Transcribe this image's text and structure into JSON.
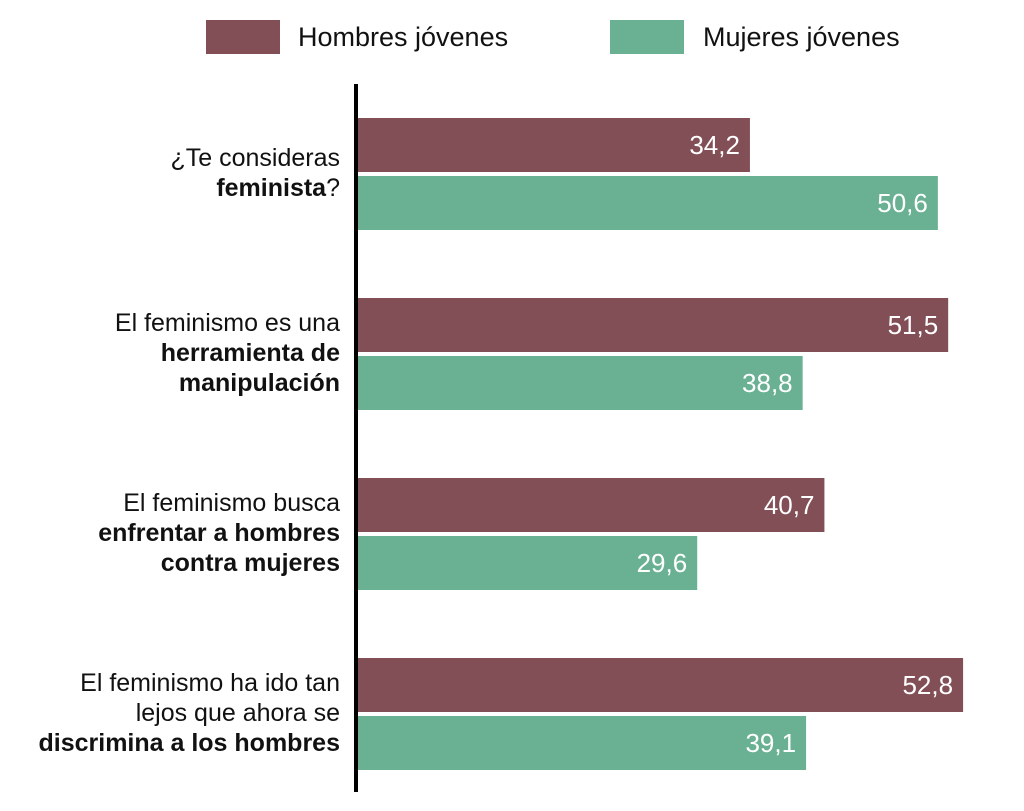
{
  "chart_data": {
    "type": "bar",
    "orientation": "horizontal",
    "title": "",
    "xlabel": "",
    "ylabel": "",
    "xlim": [
      0,
      55
    ],
    "grid": false,
    "legend_position": "top",
    "categories": [
      {
        "lines": [
          [
            {
              "text": "¿Te consideras",
              "bold": false
            }
          ],
          [
            {
              "text": "feminista",
              "bold": true
            },
            {
              "text": "?",
              "bold": false
            }
          ]
        ]
      },
      {
        "lines": [
          [
            {
              "text": "El feminismo es una",
              "bold": false
            }
          ],
          [
            {
              "text": "herramienta de",
              "bold": true
            }
          ],
          [
            {
              "text": "manipulación",
              "bold": true
            }
          ]
        ]
      },
      {
        "lines": [
          [
            {
              "text": "El feminismo busca",
              "bold": false
            }
          ],
          [
            {
              "text": "enfrentar a hombres",
              "bold": true
            }
          ],
          [
            {
              "text": "contra mujeres",
              "bold": true
            }
          ]
        ]
      },
      {
        "lines": [
          [
            {
              "text": "El feminismo ha ido tan",
              "bold": false
            }
          ],
          [
            {
              "text": "lejos que ahora se",
              "bold": false
            }
          ],
          [
            {
              "text": "discrimina a los hombres",
              "bold": true
            }
          ]
        ]
      }
    ],
    "series": [
      {
        "name": "Hombres jóvenes",
        "color": "#824f57",
        "values": [
          34.2,
          51.5,
          40.7,
          52.8
        ],
        "labels": [
          "34,2",
          "51,5",
          "40,7",
          "52,8"
        ]
      },
      {
        "name": "Mujeres jóvenes",
        "color": "#6ab194",
        "values": [
          50.6,
          38.8,
          29.6,
          39.1
        ],
        "labels": [
          "50,6",
          "38,8",
          "29,6",
          "39,1"
        ]
      }
    ],
    "axis_color": "#000000"
  }
}
